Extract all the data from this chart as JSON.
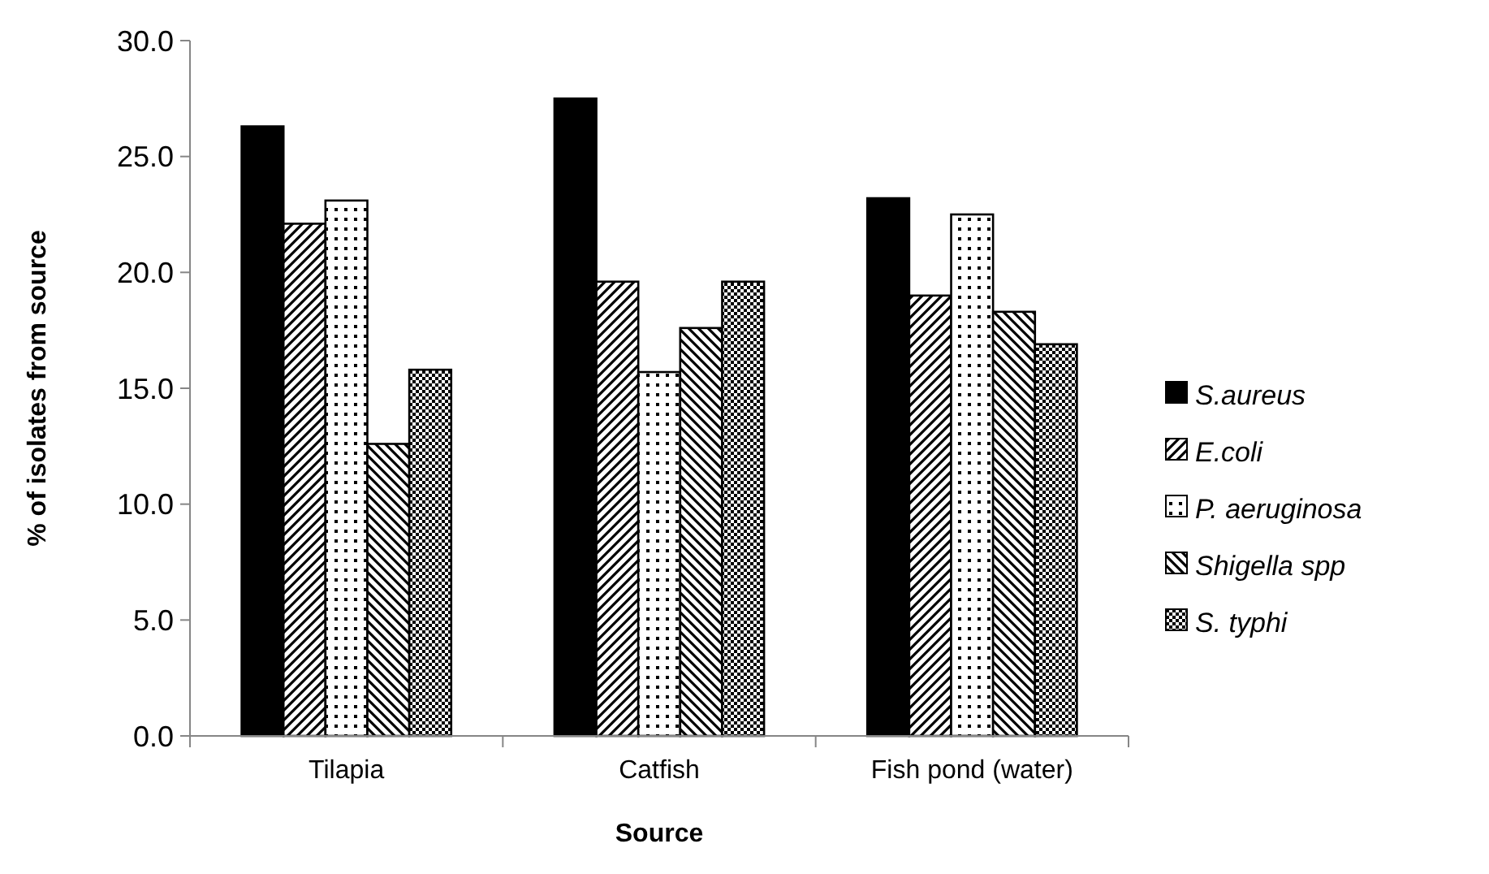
{
  "chart_data": {
    "type": "bar",
    "xlabel": "Source",
    "ylabel": "% of isolates from source",
    "categories": [
      "Tilapia",
      "Catfish",
      "Fish pond (water)"
    ],
    "series": [
      {
        "name": "S.aureus",
        "color": "#000000",
        "values": [
          26.3,
          27.5,
          23.2
        ]
      },
      {
        "name": "E.coli",
        "color": "#000000",
        "values": [
          22.1,
          19.6,
          19.0
        ]
      },
      {
        "name": "P. aeruginosa",
        "color": "#000000",
        "values": [
          23.1,
          15.7,
          22.5
        ]
      },
      {
        "name": "Shigella spp",
        "color": "#000000",
        "values": [
          12.6,
          17.6,
          18.3
        ]
      },
      {
        "name": "S. typhi",
        "color": "#000000",
        "values": [
          15.8,
          19.6,
          16.9
        ]
      }
    ],
    "ylim": [
      0,
      30
    ],
    "yticks": [
      {
        "value": 0,
        "label": "0.0"
      },
      {
        "value": 5,
        "label": "5.0"
      },
      {
        "value": 10,
        "label": "10.0"
      },
      {
        "value": 15,
        "label": "15.0"
      },
      {
        "value": 20,
        "label": "20.0"
      },
      {
        "value": 25,
        "label": "25.0"
      },
      {
        "value": 30,
        "label": "30.0"
      }
    ],
    "grid": false,
    "legend": "right"
  }
}
